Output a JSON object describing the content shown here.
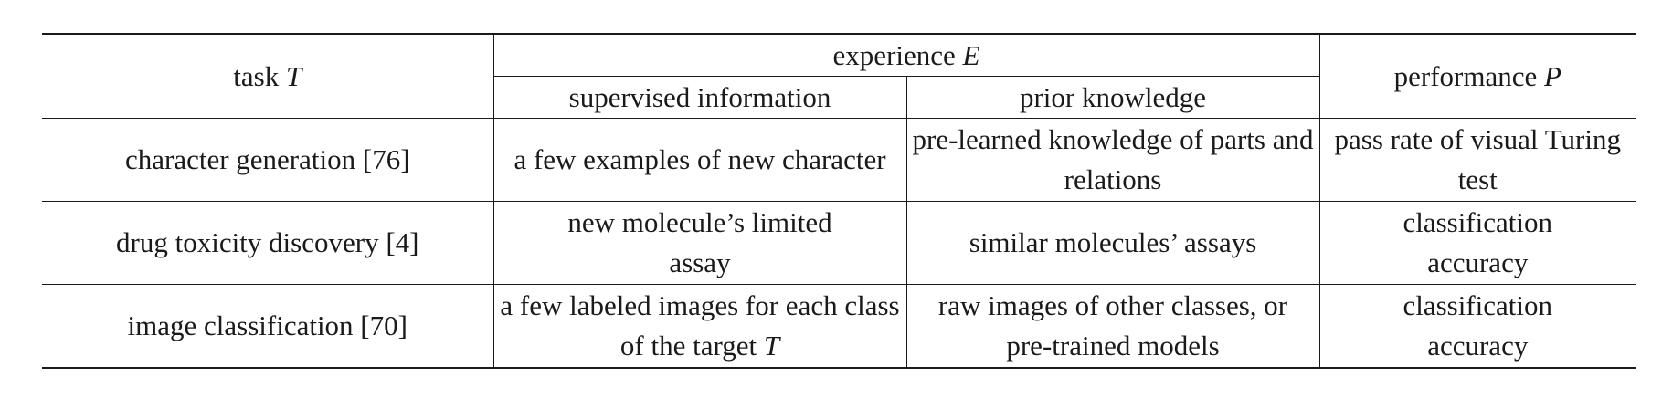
{
  "header": {
    "task_label": "task",
    "task_symbol": "T",
    "experience_label": "experience",
    "experience_symbol": "E",
    "supervised_label": "supervised information",
    "prior_label": "prior knowledge",
    "performance_label": "performance",
    "performance_symbol": "P"
  },
  "rows": [
    {
      "task": "character generation [76]",
      "supervised_text": "a few examples of new character",
      "supervised_symbol": "",
      "prior": "pre-learned knowledge of parts and relations",
      "performance": "pass rate of visual Turing test"
    },
    {
      "task": "drug toxicity discovery [4]",
      "supervised_text": "new molecule’s limited assay",
      "supervised_symbol": "",
      "prior": "similar molecules’ assays",
      "performance": "classification accuracy"
    },
    {
      "task": "image classification [70]",
      "supervised_text": "a few labeled images for each class of the target",
      "supervised_symbol": "T",
      "prior": "raw images of other classes, or pre-trained models",
      "performance": "classification accuracy"
    }
  ]
}
